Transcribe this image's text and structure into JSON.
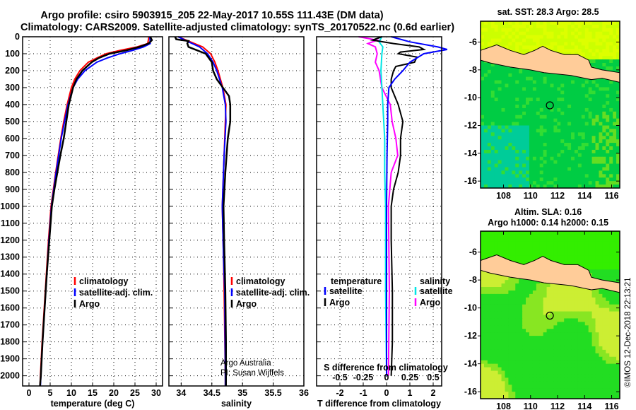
{
  "title_line1": "Argo profile: csiro 5903915_205 22-May-2017 10.55S 111.43E (DM data)",
  "title_line2": "Climatology: CARS2009. Satellite-adjusted climatology: synTS_20170522.nc (0.6d earlier)",
  "credit": "©IMOS 12-Dec-2018 22:13:21",
  "colors": {
    "climatology": "#ff0000",
    "satellite": "#0000ff",
    "argo": "#000000",
    "sal_satellite": "#00e5e5",
    "sal_argo": "#ff00ff",
    "land": "#ffcc99"
  },
  "chart_data": [
    {
      "type": "line",
      "id": "temperature",
      "xlabel": "temperature (deg C)",
      "ylabel": "depth",
      "xlim": [
        -1.5,
        31.5
      ],
      "ylim": [
        2060,
        0
      ],
      "xticks": [
        0,
        5,
        10,
        15,
        20,
        25,
        30
      ],
      "yticks": [
        0,
        100,
        200,
        300,
        400,
        500,
        600,
        700,
        800,
        900,
        1000,
        1100,
        1200,
        1300,
        1400,
        1500,
        1600,
        1700,
        1800,
        1900,
        2000
      ],
      "legend": {
        "position": "bottom-center",
        "entries": [
          "climatology",
          "satellite-adj. clim.",
          "Argo"
        ]
      },
      "series": [
        {
          "name": "climatology",
          "depth": [
            0,
            40,
            60,
            80,
            100,
            125,
            150,
            200,
            250,
            300,
            400,
            500,
            600,
            800,
            1000,
            1200,
            1400,
            1600,
            1800,
            2000,
            2060
          ],
          "values": [
            28.3,
            28.0,
            25.5,
            21.5,
            18.2,
            16.0,
            14.0,
            12.0,
            10.8,
            10.0,
            9.0,
            8.2,
            7.5,
            6.3,
            5.2,
            4.6,
            4.1,
            3.6,
            3.1,
            2.7,
            2.6
          ]
        },
        {
          "name": "satellite-adj. clim.",
          "depth": [
            0,
            40,
            60,
            80,
            100,
            125,
            150,
            200,
            250,
            300,
            400,
            500,
            600,
            800,
            1000,
            1200,
            1400,
            1600,
            1800,
            2000,
            2060
          ],
          "values": [
            28.5,
            28.6,
            27.0,
            24.5,
            21.5,
            18.5,
            16.0,
            13.2,
            11.5,
            10.4,
            9.2,
            8.4,
            7.6,
            6.4,
            5.3,
            4.7,
            4.2,
            3.7,
            3.2,
            2.8,
            2.7
          ]
        },
        {
          "name": "Argo",
          "depth": [
            0,
            20,
            40,
            60,
            80,
            100,
            125,
            150,
            200,
            250,
            300,
            400,
            500,
            600,
            700,
            800,
            900,
            1000,
            1200,
            1400,
            1600,
            1800,
            2000,
            2060
          ],
          "values": [
            28.6,
            29.0,
            28.2,
            26.0,
            23.0,
            19.0,
            16.5,
            14.8,
            12.6,
            11.2,
            10.4,
            9.4,
            8.8,
            8.2,
            7.4,
            6.7,
            6.0,
            5.4,
            4.8,
            4.2,
            3.7,
            3.2,
            2.8,
            2.6
          ]
        }
      ]
    },
    {
      "type": "line",
      "id": "salinity",
      "xlabel": "salinity",
      "ylabel": "depth",
      "xlim": [
        33.8,
        36.0
      ],
      "ylim": [
        2060,
        0
      ],
      "xticks": [
        34,
        34.5,
        35,
        35.5,
        36
      ],
      "legend": {
        "position": "bottom-right",
        "entries": [
          "climatology",
          "satellite-adj. clim.",
          "Argo"
        ]
      },
      "annotation": [
        "Argo Australia",
        "PI: Susan Wijffels"
      ],
      "series": [
        {
          "name": "climatology",
          "depth": [
            0,
            30,
            60,
            100,
            150,
            200,
            300,
            400,
            500,
            700,
            1000,
            1300,
            1500,
            2000,
            2060
          ],
          "values": [
            33.95,
            34.15,
            34.35,
            34.48,
            34.55,
            34.6,
            34.68,
            34.73,
            34.72,
            34.7,
            34.67,
            34.69,
            34.7,
            34.72,
            34.72
          ]
        },
        {
          "name": "satellite-adj. clim.",
          "depth": [
            0,
            30,
            60,
            100,
            150,
            200,
            300,
            400,
            500,
            700,
            1000,
            1300,
            1500,
            2000,
            2060
          ],
          "values": [
            33.95,
            34.12,
            34.3,
            34.43,
            34.52,
            34.58,
            34.67,
            34.72,
            34.73,
            34.7,
            34.67,
            34.69,
            34.71,
            34.72,
            34.72
          ]
        },
        {
          "name": "Argo",
          "depth": [
            0,
            15,
            25,
            40,
            60,
            100,
            150,
            200,
            250,
            300,
            350,
            400,
            500,
            600,
            700,
            800,
            1000,
            1200,
            1500,
            1800,
            2000,
            2060
          ],
          "values": [
            33.9,
            33.92,
            34.12,
            34.1,
            34.12,
            34.4,
            34.5,
            34.52,
            34.58,
            34.68,
            34.78,
            34.8,
            34.8,
            34.76,
            34.74,
            34.72,
            34.69,
            34.7,
            34.72,
            34.73,
            34.73,
            34.73
          ]
        }
      ]
    },
    {
      "type": "line",
      "id": "difference",
      "xlabel": "T difference from climatology",
      "x2label": "S difference from climatology",
      "xlim": [
        -3,
        2.4
      ],
      "x2lim": [
        -0.75,
        0.6
      ],
      "ylim": [
        2060,
        0
      ],
      "xticks": [
        -2,
        -1,
        0,
        1,
        2
      ],
      "x2ticks": [
        -0.5,
        -0.25,
        0,
        0.25,
        0.5
      ],
      "legend": {
        "temperature_title": "temperature",
        "salinity_title": "salinity",
        "entries": [
          "satellite",
          "Argo",
          "satellite",
          "Argo"
        ]
      },
      "series": [
        {
          "name": "T satellite",
          "axis": "T",
          "depth": [
            0,
            30,
            60,
            75,
            100,
            150,
            200,
            250,
            300,
            400,
            500,
            700,
            1000,
            1500,
            2000
          ],
          "values": [
            0.2,
            1.0,
            2.2,
            2.6,
            1.6,
            1.0,
            0.7,
            0.35,
            0.1,
            0.05,
            0.05,
            0.02,
            0.0,
            0.0,
            0.0
          ]
        },
        {
          "name": "T Argo",
          "axis": "T",
          "depth": [
            0,
            20,
            40,
            60,
            75,
            90,
            100,
            120,
            150,
            175,
            200,
            250,
            300,
            400,
            500,
            600,
            700,
            800,
            900,
            1000,
            1200,
            1500,
            1800,
            2000
          ],
          "values": [
            -0.2,
            -0.6,
            0.3,
            1.4,
            1.6,
            0.6,
            0.5,
            1.3,
            1.2,
            0.4,
            0.3,
            0.2,
            0.2,
            0.5,
            0.7,
            0.6,
            0.6,
            0.5,
            0.3,
            0.2,
            0.2,
            0.25,
            0.25,
            0.2
          ]
        },
        {
          "name": "S satellite",
          "axis": "S",
          "depth": [
            0,
            30,
            60,
            100,
            200,
            300,
            400,
            600,
            800,
            1000,
            1500,
            2000
          ],
          "values": [
            -0.05,
            -0.08,
            -0.04,
            -0.05,
            -0.06,
            -0.05,
            -0.04,
            -0.02,
            -0.02,
            -0.01,
            -0.01,
            0.0
          ]
        },
        {
          "name": "S Argo",
          "axis": "S",
          "depth": [
            0,
            20,
            40,
            60,
            100,
            150,
            200,
            300,
            400,
            500,
            600,
            700,
            800,
            1000,
            1500,
            2000
          ],
          "values": [
            -0.3,
            -0.1,
            -0.2,
            -0.12,
            -0.1,
            -0.12,
            -0.08,
            -0.05,
            0.04,
            0.06,
            0.1,
            0.12,
            0.05,
            0.02,
            0.03,
            0.02
          ]
        }
      ]
    },
    {
      "type": "heatmap",
      "id": "sst_map",
      "title": "sat. SST: 28.3 Argo: 28.5",
      "xlim": [
        106.3,
        116.6
      ],
      "ylim": [
        -16.5,
        -4.5
      ],
      "xticks": [
        108,
        110,
        112,
        114,
        116
      ],
      "yticks": [
        -6,
        -8,
        -10,
        -12,
        -14,
        -16
      ],
      "argo_position": {
        "lon": 111.43,
        "lat": -10.55
      }
    },
    {
      "type": "heatmap",
      "id": "sla_map",
      "title": "Altim. SLA: 0.16",
      "subtitle": "Argo h1000: 0.14 h2000: 0.15",
      "xlim": [
        106.3,
        116.6
      ],
      "ylim": [
        -16.5,
        -4.5
      ],
      "xticks": [
        108,
        110,
        112,
        114,
        116
      ],
      "yticks": [
        -6,
        -8,
        -10,
        -12,
        -14,
        -16
      ],
      "argo_position": {
        "lon": 111.43,
        "lat": -10.55
      }
    }
  ]
}
